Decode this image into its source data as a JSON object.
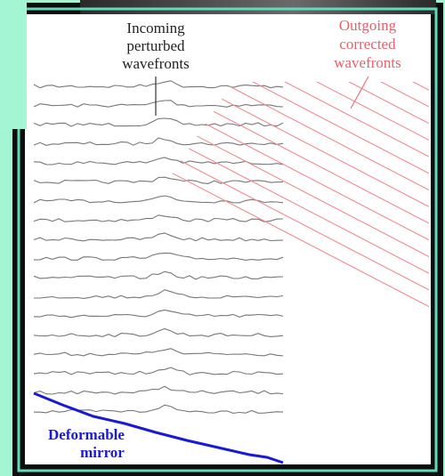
{
  "labels": {
    "incoming": [
      "Incoming",
      "perturbed",
      "wavefronts"
    ],
    "outgoing": [
      "Outgoing",
      "corrected",
      "wavefronts"
    ],
    "mirror": [
      "Deformable",
      "mirror"
    ]
  }
}
